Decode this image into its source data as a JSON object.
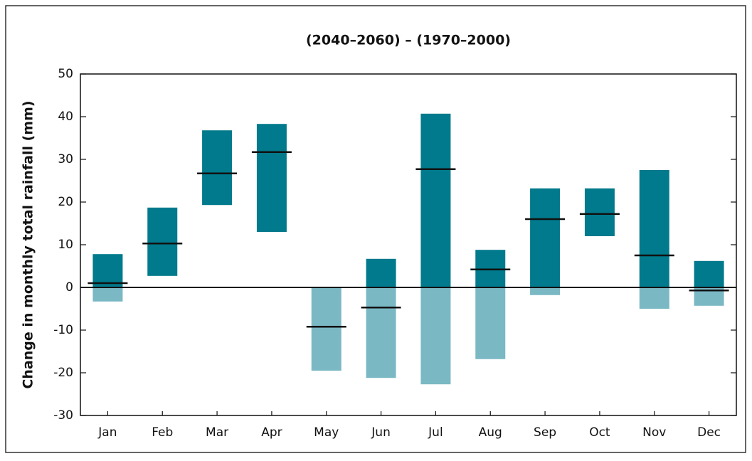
{
  "chart_data": {
    "type": "floating-bar",
    "title": "(2040–2060) – (1970–2000)",
    "y_label": "Change in monthly total rainfall (mm)",
    "categories": [
      "Jan",
      "Feb",
      "Mar",
      "Apr",
      "May",
      "Jun",
      "Jul",
      "Aug",
      "Sep",
      "Oct",
      "Nov",
      "Dec"
    ],
    "low": [
      -3.3,
      2.7,
      19.3,
      13,
      -19.5,
      -21.2,
      -22.7,
      -16.8,
      -1.8,
      12,
      -5,
      -4.3
    ],
    "high": [
      7.8,
      18.7,
      36.8,
      38.3,
      0,
      6.7,
      40.7,
      8.8,
      23.2,
      23.2,
      27.5,
      6.2
    ],
    "mid": [
      1.0,
      10.3,
      26.7,
      31.7,
      -9.2,
      -4.7,
      27.7,
      4.2,
      16,
      17.2,
      7.5,
      -0.7
    ],
    "color_above": "#007a8c",
    "color_below": "#7ab8c4",
    "ylim": [
      -30,
      50
    ],
    "yticks": [
      -30,
      -20,
      -10,
      0,
      10,
      20,
      30,
      40,
      50
    ]
  }
}
